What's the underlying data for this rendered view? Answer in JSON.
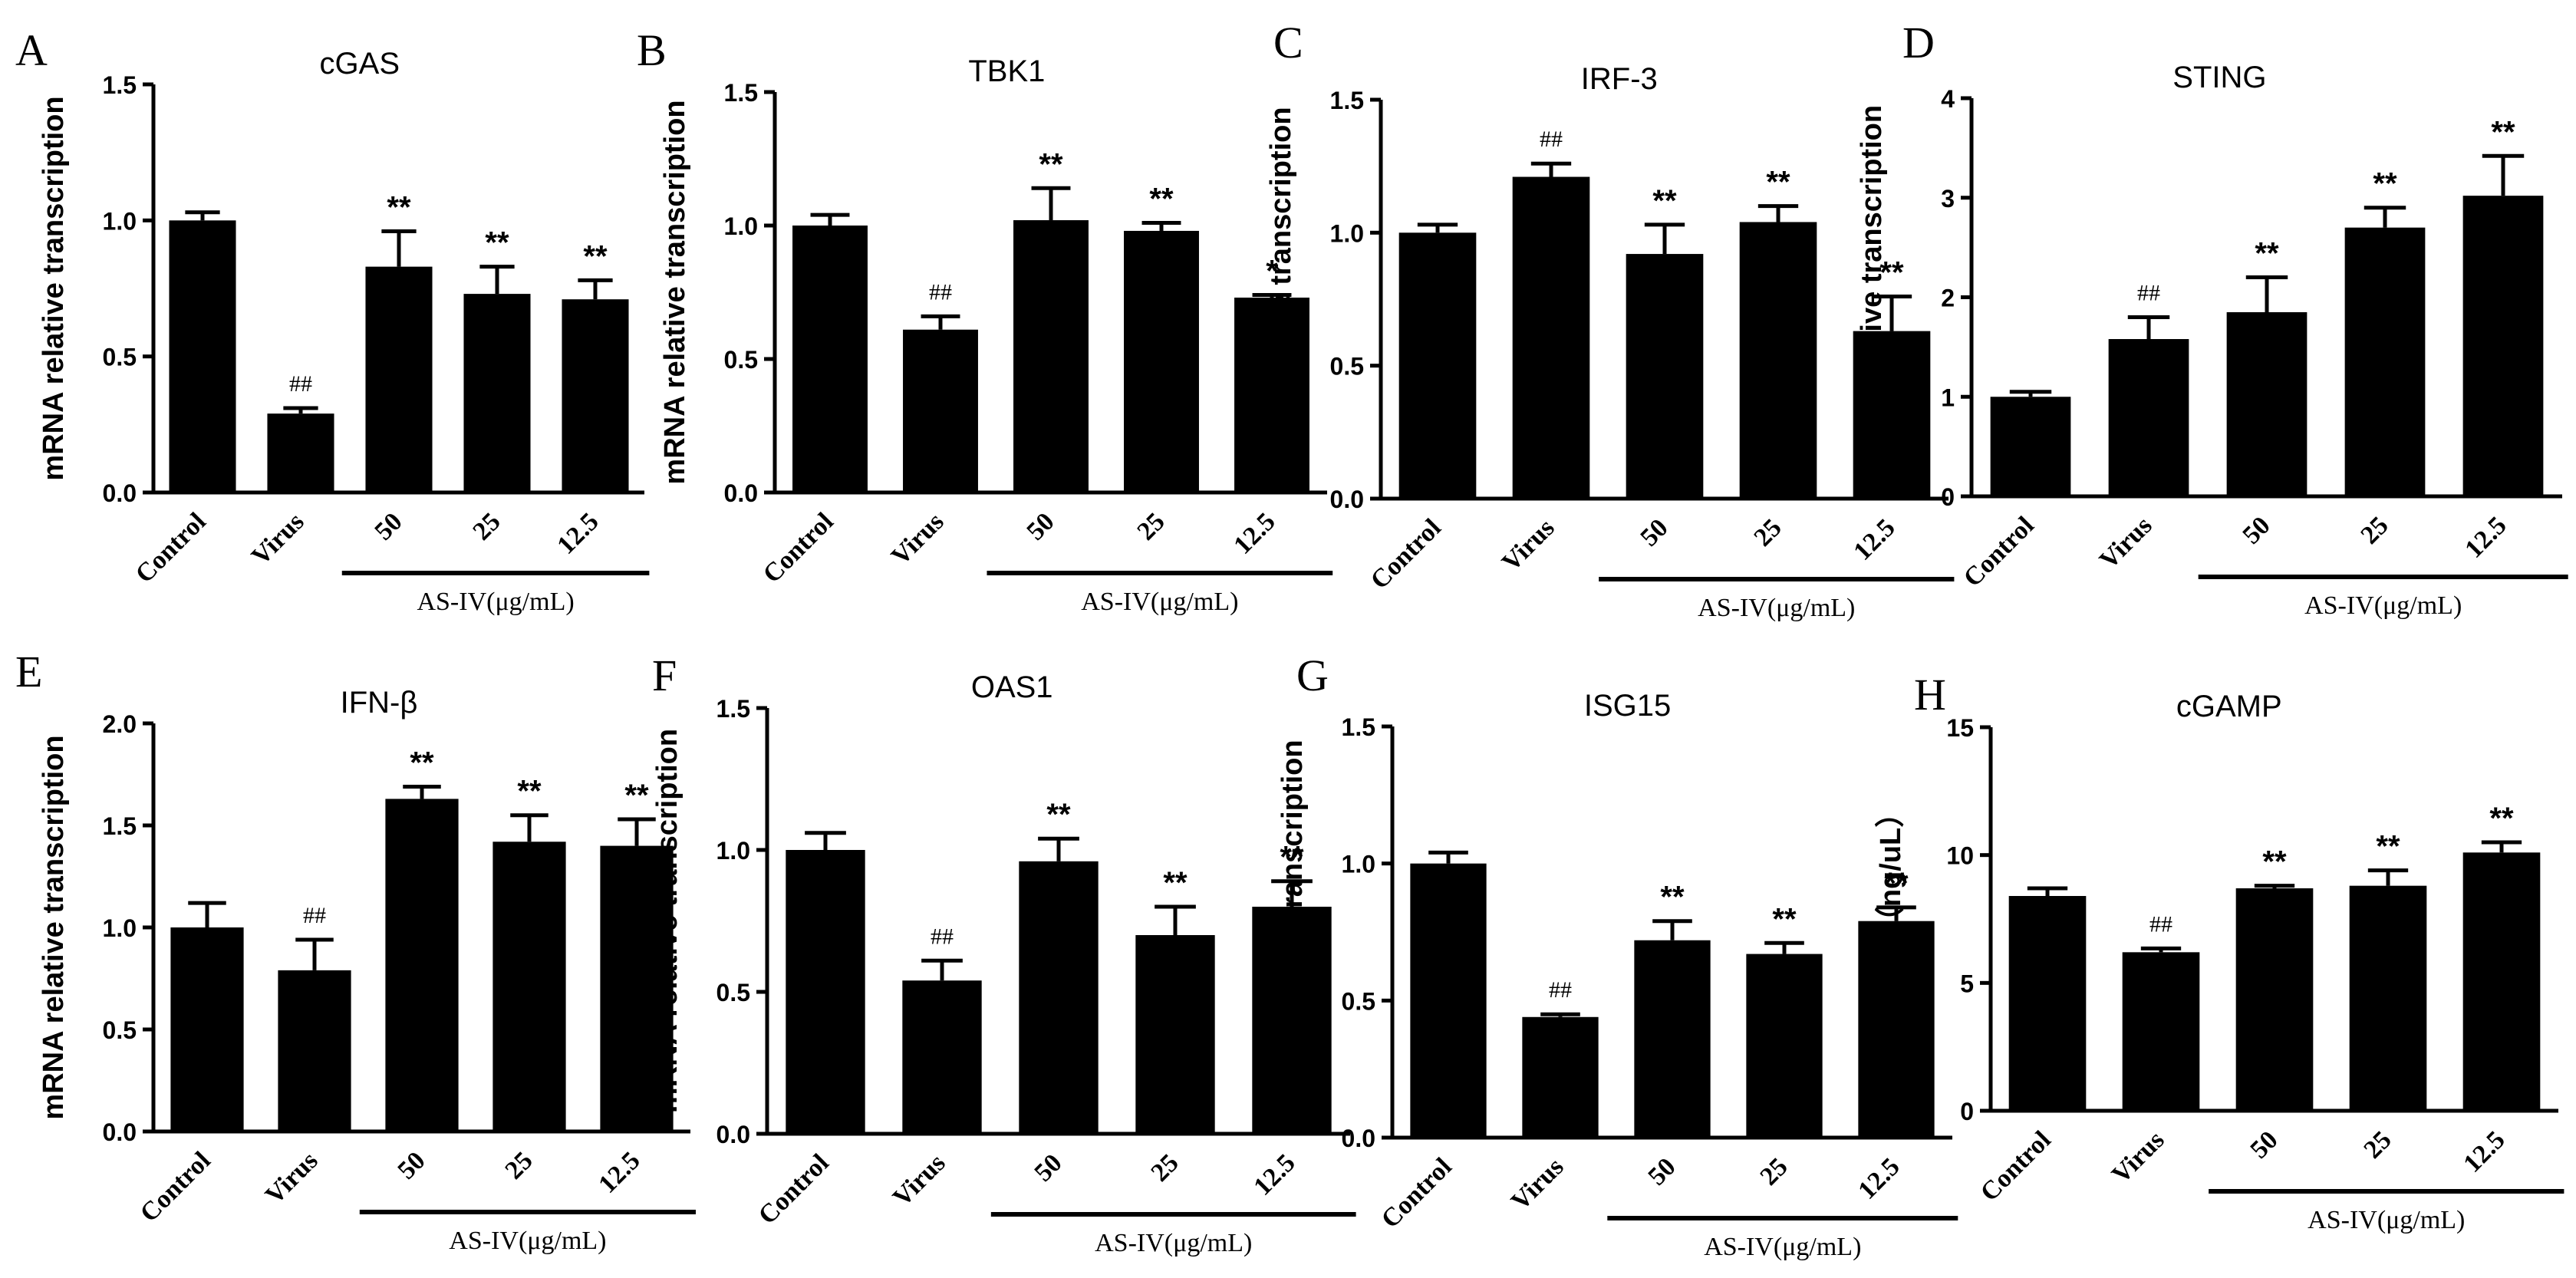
{
  "figure": {
    "background": "#ffffff",
    "bar_color": "#000000",
    "bracket_label": "AS-IV(μg/mL)"
  },
  "chart_data": [
    {
      "panel": "A",
      "type": "bar",
      "title": "cGAS",
      "ylabel": "mRNA relative transcription",
      "categories": [
        "Control",
        "Virus",
        "50",
        "25",
        "12.5"
      ],
      "values": [
        1.0,
        0.29,
        0.83,
        0.73,
        0.71
      ],
      "errors": [
        0.03,
        0.02,
        0.13,
        0.1,
        0.07
      ],
      "sig": [
        "",
        "##",
        "**",
        "**",
        "**"
      ],
      "ylim": [
        0,
        1.5
      ],
      "yticks": [
        "0.0",
        "0.5",
        "1.0",
        "1.5"
      ]
    },
    {
      "panel": "B",
      "type": "bar",
      "title": "TBK1",
      "ylabel": "mRNA relative transcription",
      "categories": [
        "Control",
        "Virus",
        "50",
        "25",
        "12.5"
      ],
      "values": [
        1.0,
        0.61,
        1.02,
        0.98,
        0.73
      ],
      "errors": [
        0.04,
        0.05,
        0.12,
        0.03,
        0.01
      ],
      "sig": [
        "",
        "##",
        "**",
        "**",
        "*"
      ],
      "ylim": [
        0,
        1.5
      ],
      "yticks": [
        "0.0",
        "0.5",
        "1.0",
        "1.5"
      ]
    },
    {
      "panel": "C",
      "type": "bar",
      "title": "IRF-3",
      "ylabel": "mRNA relative transcription",
      "categories": [
        "Control",
        "Virus",
        "50",
        "25",
        "12.5"
      ],
      "values": [
        1.0,
        1.21,
        0.92,
        1.04,
        0.63
      ],
      "errors": [
        0.03,
        0.05,
        0.11,
        0.06,
        0.13
      ],
      "sig": [
        "",
        "##",
        "**",
        "**",
        "**"
      ],
      "ylim": [
        0,
        1.5
      ],
      "yticks": [
        "0.0",
        "0.5",
        "1.0",
        "1.5"
      ]
    },
    {
      "panel": "D",
      "type": "bar",
      "title": "STING",
      "ylabel": "mRNA relative transcription",
      "categories": [
        "Control",
        "Virus",
        "50",
        "25",
        "12.5"
      ],
      "values": [
        1.0,
        1.58,
        1.85,
        2.7,
        3.02
      ],
      "errors": [
        0.05,
        0.22,
        0.35,
        0.2,
        0.4
      ],
      "sig": [
        "",
        "##",
        "**",
        "**",
        "**"
      ],
      "ylim": [
        0,
        4
      ],
      "yticks": [
        "0",
        "1",
        "2",
        "3",
        "4"
      ]
    },
    {
      "panel": "E",
      "type": "bar",
      "title": "IFN-β",
      "ylabel": "mRNA relative transcription",
      "categories": [
        "Control",
        "Virus",
        "50",
        "25",
        "12.5"
      ],
      "values": [
        1.0,
        0.79,
        1.63,
        1.42,
        1.4
      ],
      "errors": [
        0.12,
        0.15,
        0.06,
        0.13,
        0.13
      ],
      "sig": [
        "",
        "##",
        "**",
        "**",
        "**"
      ],
      "ylim": [
        0,
        2.0
      ],
      "yticks": [
        "0.0",
        "0.5",
        "1.0",
        "1.5",
        "2.0"
      ]
    },
    {
      "panel": "F",
      "type": "bar",
      "title": "OAS1",
      "ylabel": "mRNA relative transcription",
      "categories": [
        "Control",
        "Virus",
        "50",
        "25",
        "12.5"
      ],
      "values": [
        1.0,
        0.54,
        0.96,
        0.7,
        0.8
      ],
      "errors": [
        0.06,
        0.07,
        0.08,
        0.1,
        0.09
      ],
      "sig": [
        "",
        "##",
        "**",
        "**",
        "**"
      ],
      "ylim": [
        0,
        1.5
      ],
      "yticks": [
        "0.0",
        "0.5",
        "1.0",
        "1.5"
      ]
    },
    {
      "panel": "G",
      "type": "bar",
      "title": "ISG15",
      "ylabel": "mRNA relative transcription",
      "categories": [
        "Control",
        "Virus",
        "50",
        "25",
        "12.5"
      ],
      "values": [
        1.0,
        0.44,
        0.72,
        0.67,
        0.79
      ],
      "errors": [
        0.04,
        0.01,
        0.07,
        0.04,
        0.05
      ],
      "sig": [
        "",
        "##",
        "**",
        "**",
        "**"
      ],
      "ylim": [
        0,
        1.5
      ],
      "yticks": [
        "0.0",
        "0.5",
        "1.0",
        "1.5"
      ]
    },
    {
      "panel": "H",
      "type": "bar",
      "title": "cGAMP",
      "ylabel": "cGAMP（ng/uL）",
      "categories": [
        "Control",
        "Virus",
        "50",
        "25",
        "12.5"
      ],
      "values": [
        8.4,
        6.2,
        8.7,
        8.8,
        10.1
      ],
      "errors": [
        0.3,
        0.15,
        0.1,
        0.6,
        0.4
      ],
      "sig": [
        "",
        "##",
        "**",
        "**",
        "**"
      ],
      "ylim": [
        0,
        15
      ],
      "yticks": [
        "0",
        "5",
        "10",
        "15"
      ]
    }
  ]
}
